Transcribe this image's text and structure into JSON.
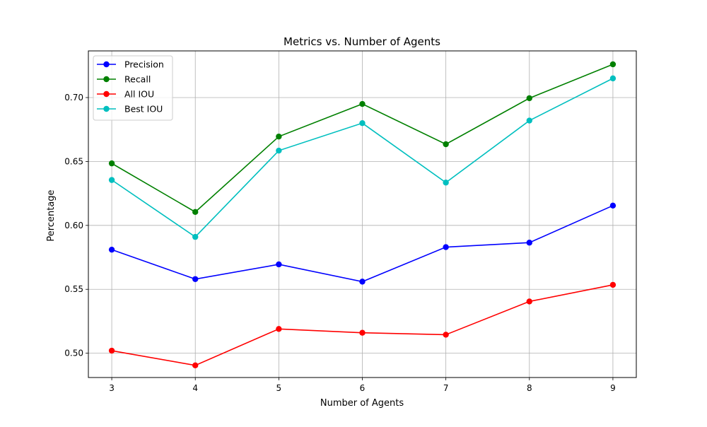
{
  "chart_data": {
    "type": "line",
    "title": "Metrics vs. Number of Agents",
    "xlabel": "Number of Agents",
    "ylabel": "Percentage",
    "x": [
      3,
      4,
      5,
      6,
      7,
      8,
      9
    ],
    "xlim": [
      2.72,
      9.28
    ],
    "ylim": [
      0.481,
      0.7365
    ],
    "xticks": [
      "3",
      "4",
      "5",
      "6",
      "7",
      "8",
      "9"
    ],
    "yticks": [
      0.5,
      0.55,
      0.6,
      0.65,
      0.7
    ],
    "ytick_labels": [
      "0.50",
      "0.55",
      "0.60",
      "0.65",
      "0.70"
    ],
    "grid": true,
    "legend_position": "top-left",
    "series": [
      {
        "name": "Precision",
        "color": "#0000ff",
        "marker": "circle",
        "values": [
          0.581,
          0.558,
          0.5695,
          0.556,
          0.583,
          0.5865,
          0.6155
        ]
      },
      {
        "name": "Recall",
        "color": "#008000",
        "marker": "circle",
        "values": [
          0.6485,
          0.6105,
          0.6695,
          0.695,
          0.6635,
          0.6995,
          0.726
        ]
      },
      {
        "name": "All IOU",
        "color": "#ff0000",
        "marker": "circle",
        "values": [
          0.502,
          0.4905,
          0.519,
          0.516,
          0.5145,
          0.5405,
          0.5535
        ]
      },
      {
        "name": "Best IOU",
        "color": "#00bfbf",
        "marker": "circle",
        "values": [
          0.6355,
          0.591,
          0.6585,
          0.68,
          0.6335,
          0.682,
          0.715
        ]
      }
    ]
  }
}
